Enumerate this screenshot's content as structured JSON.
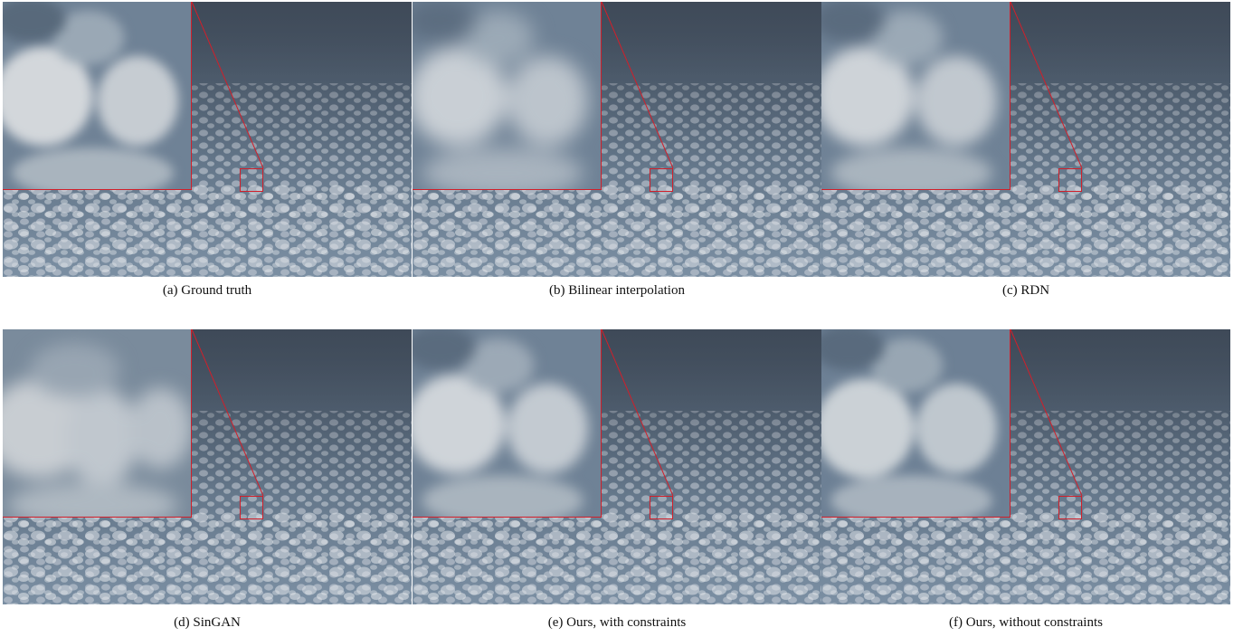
{
  "figure": {
    "panels": [
      {
        "id": "a",
        "caption": "(a) Ground truth",
        "inset_blur": 6
      },
      {
        "id": "b",
        "caption": "(b) Bilinear interpolation",
        "inset_blur": 11
      },
      {
        "id": "c",
        "caption": "(c) RDN",
        "inset_blur": 8
      },
      {
        "id": "d",
        "caption": "(d) SinGAN",
        "inset_blur": 10
      },
      {
        "id": "e",
        "caption": "(e) Ours, with constraints",
        "inset_blur": 7
      },
      {
        "id": "f",
        "caption": "(f) Ours, without constraints",
        "inset_blur": 6
      }
    ],
    "colors": {
      "highlight": "#d11f2a",
      "sky_dark": "#3e4e5f",
      "sky_mid": "#6d8094",
      "cloud": "#d8dde2"
    }
  }
}
